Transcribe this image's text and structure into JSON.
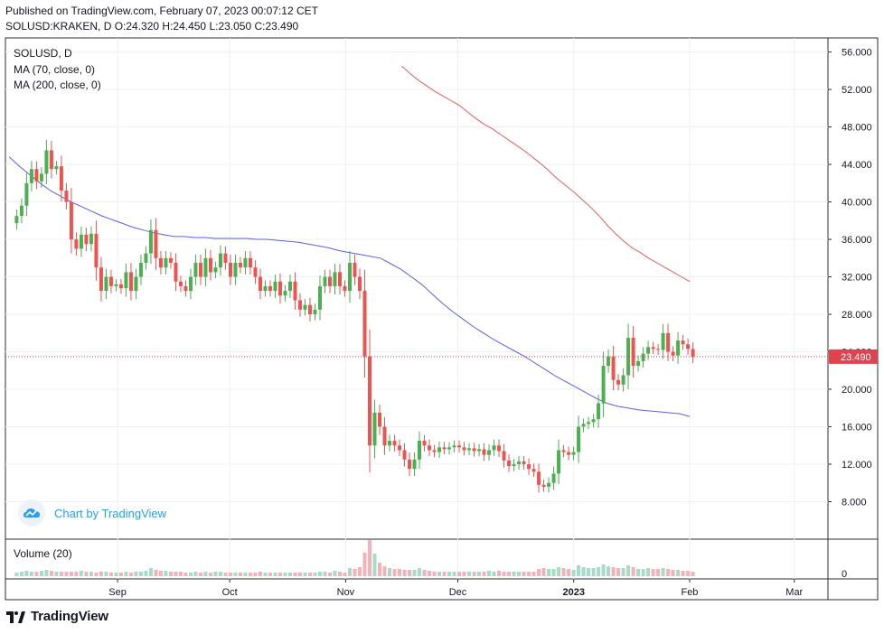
{
  "header": {
    "published": "Published on TradingView.com, February 07, 2023 00:07:12 CET",
    "symbol_line": "SOLUSD:KRAKEN, D  O:24.320 H:24.450 L:23.050 C:23.490"
  },
  "legend": {
    "symbol": "SOLUSD, D",
    "ma70": "MA (70, close, 0)",
    "ma200": "MA (200, close, 0)",
    "volume": "Volume (20)"
  },
  "branding": {
    "chart_by": "Chart by TradingView",
    "footer": "TradingView"
  },
  "colors": {
    "up": "#26a69a",
    "up_candle": "#4caf50",
    "down": "#ef5350",
    "ma70": "#5b5ff0",
    "ma200": "#f05a5a",
    "price_line": "#e0434f",
    "volume_up": "#a5dcc8",
    "volume_down": "#f7b1b6"
  },
  "chart_data": {
    "type": "candlestick",
    "symbol": "SOLUSD:KRAKEN",
    "interval": "D",
    "y_axis": {
      "min": 4.0,
      "max": 57.5,
      "ticks": [
        8,
        12,
        16,
        20,
        24,
        28,
        32,
        36,
        40,
        44,
        48,
        52,
        56
      ],
      "tick_labels": [
        "8.000",
        "12.000",
        "16.000",
        "20.000",
        "24.000",
        "28.000",
        "32.000",
        "36.000",
        "40.000",
        "44.000",
        "48.000",
        "52.000",
        "56.000"
      ],
      "position": "right",
      "grid": true
    },
    "x_axis": {
      "start": "2022-08-02",
      "end": "2023-03-10",
      "tick_dates": [
        "2022-09-01",
        "2022-10-01",
        "2022-11-01",
        "2022-12-01",
        "2023-01-01",
        "2023-02-01",
        "2023-03-01"
      ],
      "tick_labels": [
        "Sep",
        "Oct",
        "Nov",
        "Dec",
        "2023",
        "Feb",
        "Mar"
      ]
    },
    "last_price": {
      "value": 23.49,
      "label": "23.490"
    },
    "last_ohlc": {
      "open": 24.32,
      "high": 24.45,
      "low": 23.05,
      "close": 23.49
    },
    "closes": [
      38.5,
      39.6,
      42.0,
      43.5,
      42.2,
      43.0,
      45.5,
      43.5,
      43.8,
      41.2,
      40.0,
      36.0,
      35.0,
      36.5,
      35.5,
      36.6,
      33.0,
      30.5,
      32.0,
      31.0,
      31.2,
      30.8,
      32.5,
      30.5,
      32.0,
      33.5,
      34.5,
      37.0,
      34.0,
      33.0,
      34.0,
      33.5,
      31.5,
      31.0,
      30.5,
      32.0,
      33.5,
      32.0,
      34.0,
      32.5,
      33.0,
      34.5,
      33.5,
      32.0,
      33.5,
      33.0,
      34.0,
      33.0,
      32.0,
      30.5,
      31.0,
      30.5,
      31.5,
      30.0,
      30.5,
      31.5,
      29.5,
      28.5,
      29.0,
      28.0,
      28.5,
      31.0,
      32.0,
      31.0,
      32.5,
      31.0,
      30.5,
      33.5,
      32.0,
      30.5,
      23.5,
      14.0,
      17.5,
      16.0,
      14.0,
      14.5,
      14.0,
      13.5,
      12.5,
      11.5,
      12.5,
      14.5,
      14.0,
      13.5,
      13.3,
      13.8,
      13.6,
      13.8,
      14.0,
      13.8,
      13.5,
      13.7,
      13.4,
      13.6,
      13.0,
      13.5,
      14.0,
      13.4,
      12.4,
      11.8,
      12.0,
      12.3,
      12.0,
      11.5,
      11.2,
      9.8,
      9.6,
      10.0,
      11.0,
      13.5,
      13.3,
      13.0,
      13.3,
      16.0,
      16.3,
      16.5,
      16.8,
      18.5,
      22.5,
      23.5,
      21.0,
      20.5,
      21.5,
      25.5,
      22.5,
      23.0,
      23.8,
      24.5,
      24.3,
      24.2,
      26.0,
      24.0,
      23.6,
      25.2,
      24.8,
      24.3,
      23.49
    ],
    "ma70": [
      44.8,
      43.8,
      42.9,
      42.0,
      41.2,
      40.6,
      40.0,
      39.5,
      39.0,
      38.5,
      38.1,
      37.7,
      37.3,
      37.0,
      36.7,
      36.5,
      36.3,
      36.3,
      36.2,
      36.2,
      36.1,
      36.1,
      36.1,
      36.1,
      36.0,
      36.0,
      35.9,
      35.8,
      35.7,
      35.5,
      35.3,
      35.1,
      34.8,
      34.6,
      34.4,
      34.2,
      34.0,
      33.4,
      32.8,
      32.0,
      31.2,
      30.2,
      29.2,
      28.3,
      27.5,
      26.7,
      26.0,
      25.3,
      24.7,
      24.1,
      23.5,
      22.8,
      22.1,
      21.4,
      20.8,
      20.2,
      19.6,
      19.0,
      18.5,
      18.2,
      18.0,
      17.8,
      17.7,
      17.6,
      17.5,
      17.4,
      17.1
    ],
    "ma200": [
      54.5,
      53.7,
      53.0,
      52.4,
      51.8,
      51.3,
      50.8,
      50.3,
      49.6,
      48.9,
      48.3,
      47.8,
      47.2,
      46.6,
      46.0,
      45.4,
      44.7,
      44.0,
      43.2,
      42.4,
      41.7,
      41.0,
      40.2,
      39.4,
      38.5,
      37.5,
      36.6,
      35.8,
      35.1,
      34.6,
      34.0,
      33.5,
      33.0,
      32.5,
      32.0,
      31.5
    ],
    "volume": {
      "label": "Volume (20)",
      "tick_labels": [
        "0"
      ],
      "values": [
        0.4,
        0.5,
        0.6,
        0.5,
        0.5,
        0.6,
        0.7,
        0.6,
        0.5,
        0.5,
        0.5,
        0.5,
        0.5,
        0.6,
        0.5,
        0.5,
        0.4,
        0.5,
        0.5,
        0.4,
        0.4,
        0.4,
        0.5,
        0.4,
        0.5,
        0.5,
        0.6,
        0.9,
        0.7,
        0.6,
        0.6,
        0.5,
        0.5,
        0.5,
        0.4,
        0.4,
        0.5,
        0.4,
        0.5,
        0.4,
        0.5,
        0.5,
        0.4,
        0.4,
        0.4,
        0.4,
        0.4,
        0.4,
        0.4,
        0.5,
        0.4,
        0.4,
        0.4,
        0.4,
        0.4,
        0.4,
        0.4,
        0.4,
        0.4,
        0.4,
        0.4,
        0.5,
        0.5,
        0.4,
        0.6,
        0.5,
        0.4,
        0.9,
        0.8,
        1.0,
        2.6,
        4.0,
        2.5,
        1.5,
        1.1,
        0.9,
        0.8,
        0.8,
        0.7,
        0.7,
        0.7,
        0.9,
        0.7,
        0.6,
        0.5,
        0.5,
        0.5,
        0.5,
        0.5,
        0.5,
        0.5,
        0.5,
        0.5,
        0.5,
        0.5,
        0.6,
        0.5,
        0.6,
        0.5,
        0.5,
        0.5,
        0.5,
        0.5,
        0.5,
        0.5,
        0.8,
        0.9,
        0.8,
        0.8,
        1.0,
        0.9,
        0.8,
        0.7,
        1.2,
        1.0,
        0.9,
        0.9,
        1.0,
        1.3,
        1.1,
        1.0,
        0.9,
        0.9,
        1.2,
        1.0,
        0.8,
        0.8,
        0.9,
        0.8,
        0.8,
        0.9,
        0.8,
        0.7,
        0.7,
        0.6,
        0.6,
        0.5
      ]
    }
  }
}
